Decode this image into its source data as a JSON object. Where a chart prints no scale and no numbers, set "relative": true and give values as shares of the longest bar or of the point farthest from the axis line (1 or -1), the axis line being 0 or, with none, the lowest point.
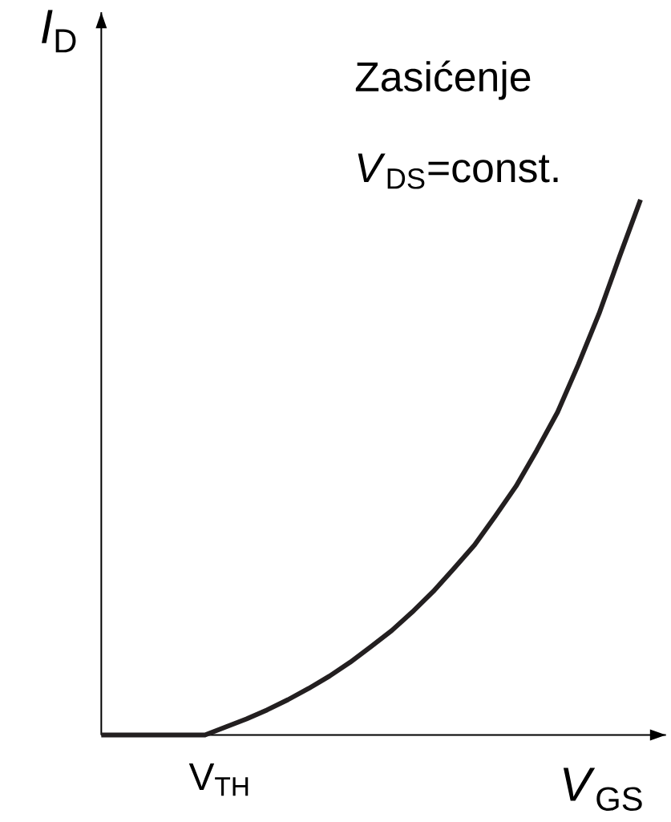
{
  "chart_data": {
    "type": "line",
    "relative": true,
    "xlabel": "*V*$_{GS}$",
    "ylabel": "*I*$_{D}$",
    "categories": [
      null,
      null,
      null,
      null,
      null,
      null,
      null,
      null,
      null,
      null,
      null,
      null,
      null,
      null,
      null,
      null,
      null,
      null,
      null,
      null,
      null,
      null,
      null,
      null,
      null,
      null,
      null
    ],
    "values": [
      0,
      0,
      0,
      0,
      0,
      0,
      0.015,
      0.03,
      0.047,
      0.066,
      0.087,
      0.11,
      0.136,
      0.165,
      0.195,
      0.23,
      0.268,
      0.311,
      0.355,
      0.409,
      0.465,
      0.532,
      0.603,
      0.692,
      0.787,
      0.895,
      1
    ],
    "color": "#231f20",
    "annotations": [
      "Zasićenje",
      "*V*$_{DS}$=const.",
      "V$_{TH}$"
    ],
    "grid": false,
    "marker": "none",
    "line_style": "solid"
  }
}
